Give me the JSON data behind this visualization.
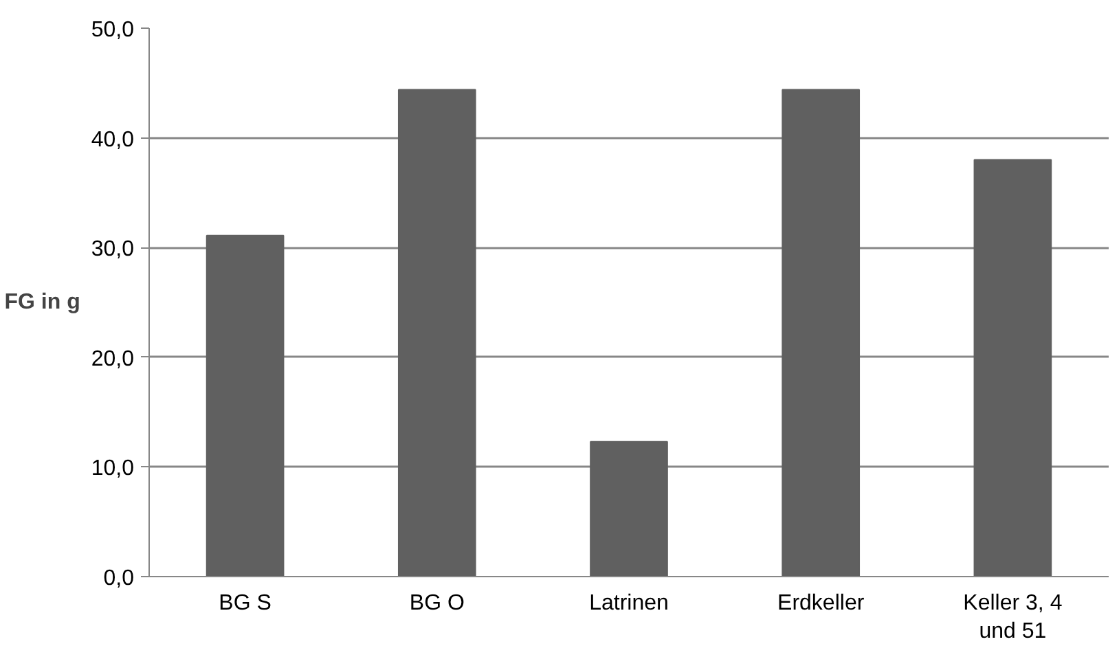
{
  "chart_data": {
    "type": "bar",
    "ylabel": "FG in g",
    "categories": [
      "BG S",
      "BG O",
      "Latrinen",
      "Erdkeller",
      "Keller 3, 4 und 51"
    ],
    "values": [
      31.1,
      44.4,
      12.3,
      44.4,
      38.0
    ],
    "color": "#606060",
    "ylim": [
      0,
      50
    ],
    "yticks": [
      {
        "value": 0,
        "label": "0,0"
      },
      {
        "value": 10,
        "label": "10,0"
      },
      {
        "value": 20,
        "label": "20,0"
      },
      {
        "value": 30,
        "label": "30,0"
      },
      {
        "value": 40,
        "label": "40,0"
      },
      {
        "value": 50,
        "label": "50,0"
      }
    ],
    "grid": "y"
  }
}
